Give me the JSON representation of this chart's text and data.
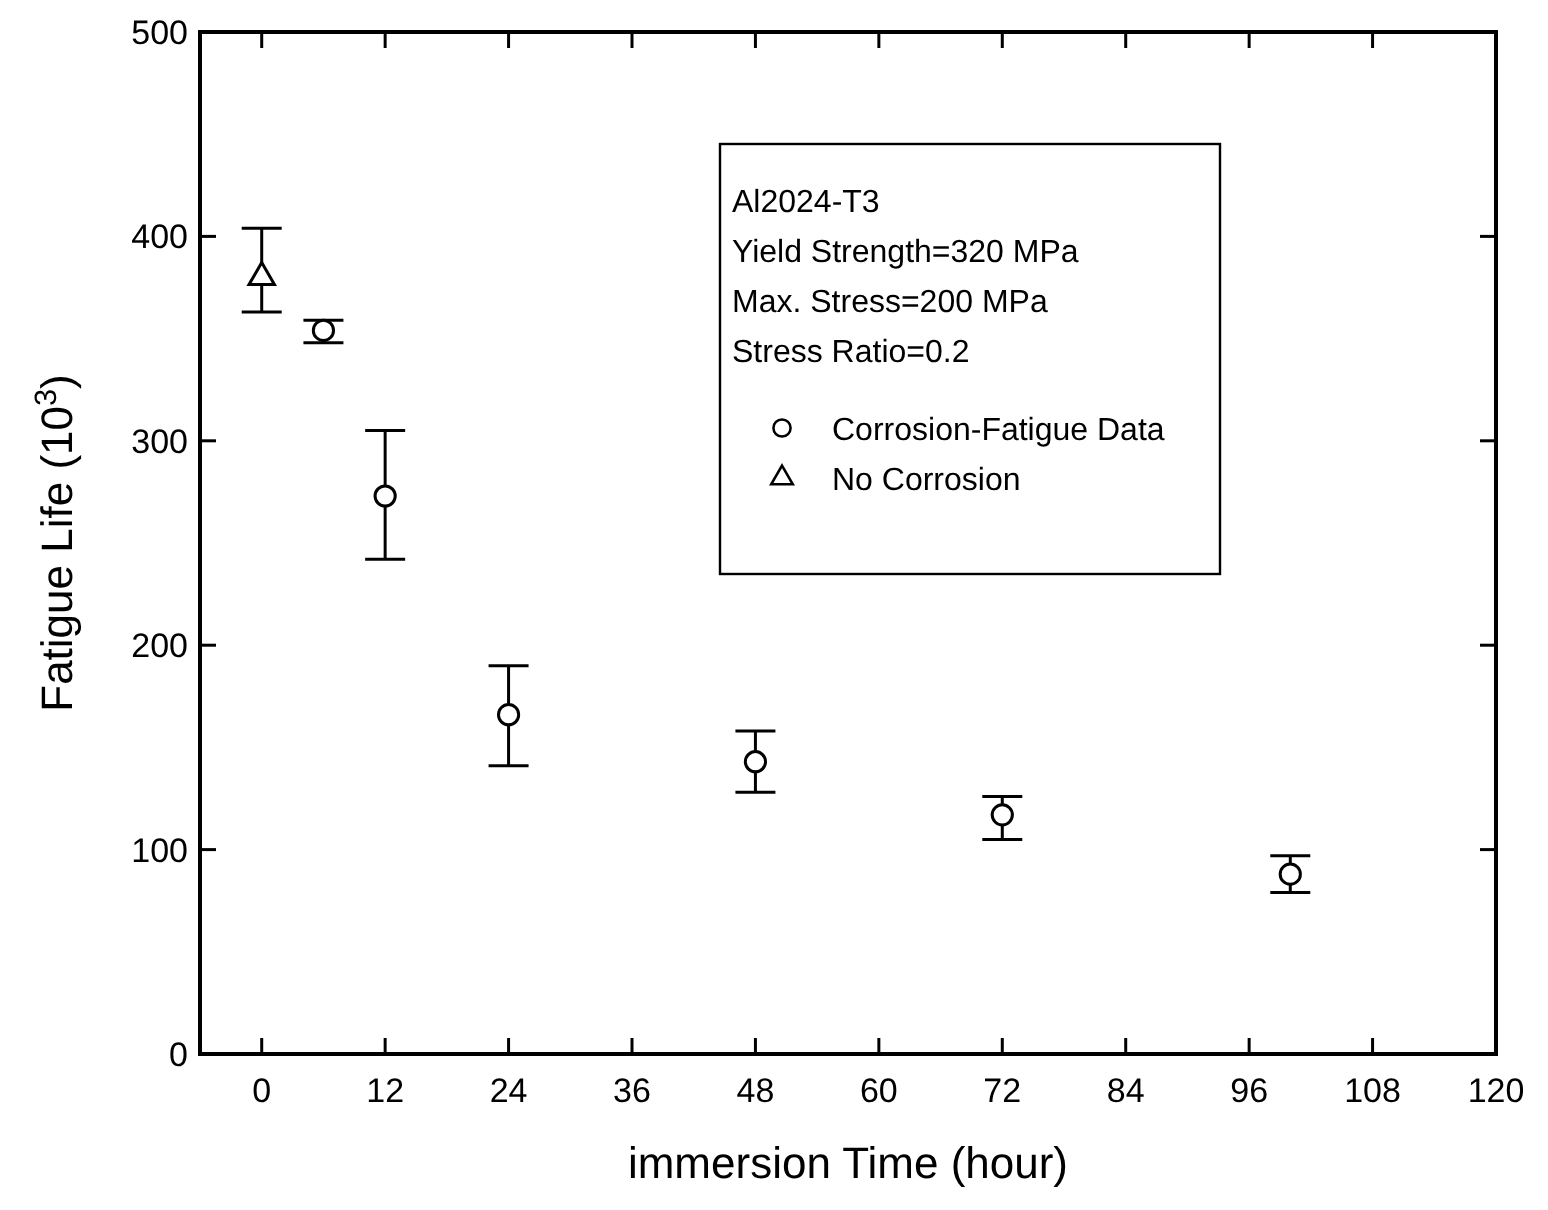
{
  "chart_data": {
    "type": "scatter",
    "xlabel": "immersion Time (hour)",
    "ylabel": "Fatigue Life (10$^{3}$)",
    "annotations": [
      "Al2024-T3",
      "Yield Strength=320 MPa",
      "Max. Stress=200 MPa",
      "Stress Ratio=0.2"
    ],
    "series": [
      {
        "name": "Corrosion-Fatigue Data",
        "color": "#000000",
        "marker": "circle",
        "x": [
          6,
          12,
          24,
          48,
          72,
          100
        ],
        "values": [
          354,
          273,
          166,
          143,
          117,
          88
        ],
        "errors": [
          [
            348,
            359
          ],
          [
            242,
            305
          ],
          [
            141,
            190
          ],
          [
            128,
            158
          ],
          [
            105,
            126
          ],
          [
            79,
            97
          ]
        ]
      },
      {
        "name": "No Corrosion",
        "color": "#000000",
        "marker": "triangle",
        "x": [
          0
        ],
        "values": [
          380
        ],
        "errors": [
          [
            363,
            404
          ]
        ]
      }
    ],
    "xlim": [
      -6,
      120
    ],
    "xticks": [
      0,
      12,
      24,
      36,
      48,
      60,
      72,
      84,
      96,
      108,
      120
    ],
    "ylim": [
      0,
      500
    ],
    "yticks": [
      0,
      100,
      200,
      300,
      400,
      500
    ],
    "grid": false,
    "legend": "top right"
  }
}
